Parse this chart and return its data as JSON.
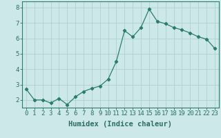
{
  "x": [
    0,
    1,
    2,
    3,
    4,
    5,
    6,
    7,
    8,
    9,
    10,
    11,
    12,
    13,
    14,
    15,
    16,
    17,
    18,
    19,
    20,
    21,
    22,
    23
  ],
  "y": [
    2.7,
    2.0,
    2.0,
    1.8,
    2.1,
    1.7,
    2.2,
    2.55,
    2.75,
    2.9,
    3.35,
    4.5,
    6.5,
    6.1,
    6.7,
    7.9,
    7.1,
    6.95,
    6.7,
    6.55,
    6.35,
    6.1,
    5.95,
    5.35
  ],
  "line_color": "#2a7d6e",
  "marker": "D",
  "marker_size": 2.2,
  "bg_color": "#cce8e8",
  "grid_color": "#b0d0d0",
  "xlabel": "Humidex (Indice chaleur)",
  "ylim": [
    1.5,
    8.4
  ],
  "xlim": [
    -0.5,
    23.5
  ],
  "yticks": [
    2,
    3,
    4,
    5,
    6,
    7,
    8
  ],
  "xticks": [
    0,
    1,
    2,
    3,
    4,
    5,
    6,
    7,
    8,
    9,
    10,
    11,
    12,
    13,
    14,
    15,
    16,
    17,
    18,
    19,
    20,
    21,
    22,
    23
  ],
  "tick_color": "#2a6e60",
  "spine_color": "#2a7d6e",
  "label_fontsize": 7.5,
  "tick_fontsize": 6.5
}
